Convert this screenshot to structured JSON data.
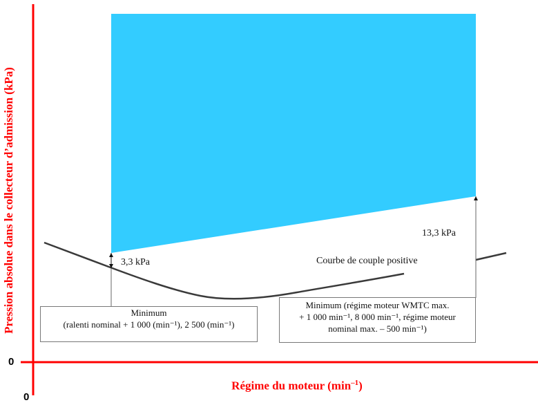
{
  "diagram": {
    "y_axis_label": "Pression absolue dans le collecteur d’admission (kPa)",
    "x_axis_label": "Régime du moteur (min",
    "x_axis_label_exp": "–1",
    "x_axis_label_close": ")",
    "y_origin": "0",
    "x_origin": "0",
    "label_low": "3,3 kPa",
    "label_high": "13,3 kPa",
    "curve_label": "Courbe de couple positive",
    "box_left_lines": [
      "Minimum",
      "(ralenti nominal + 1 000 (min⁻¹), 2 500 (min⁻¹)"
    ],
    "box_right_lines": [
      "Minimum (régime moteur WMTC max.",
      "+ 1 000 min⁻¹, 8 000 min⁻¹, régime moteur",
      "nominal max. – 500 min⁻¹)"
    ],
    "colors": {
      "axis": "#ff0000",
      "fill": "#33ccff",
      "curve": "#3a3a3a",
      "text": "#111111"
    }
  }
}
